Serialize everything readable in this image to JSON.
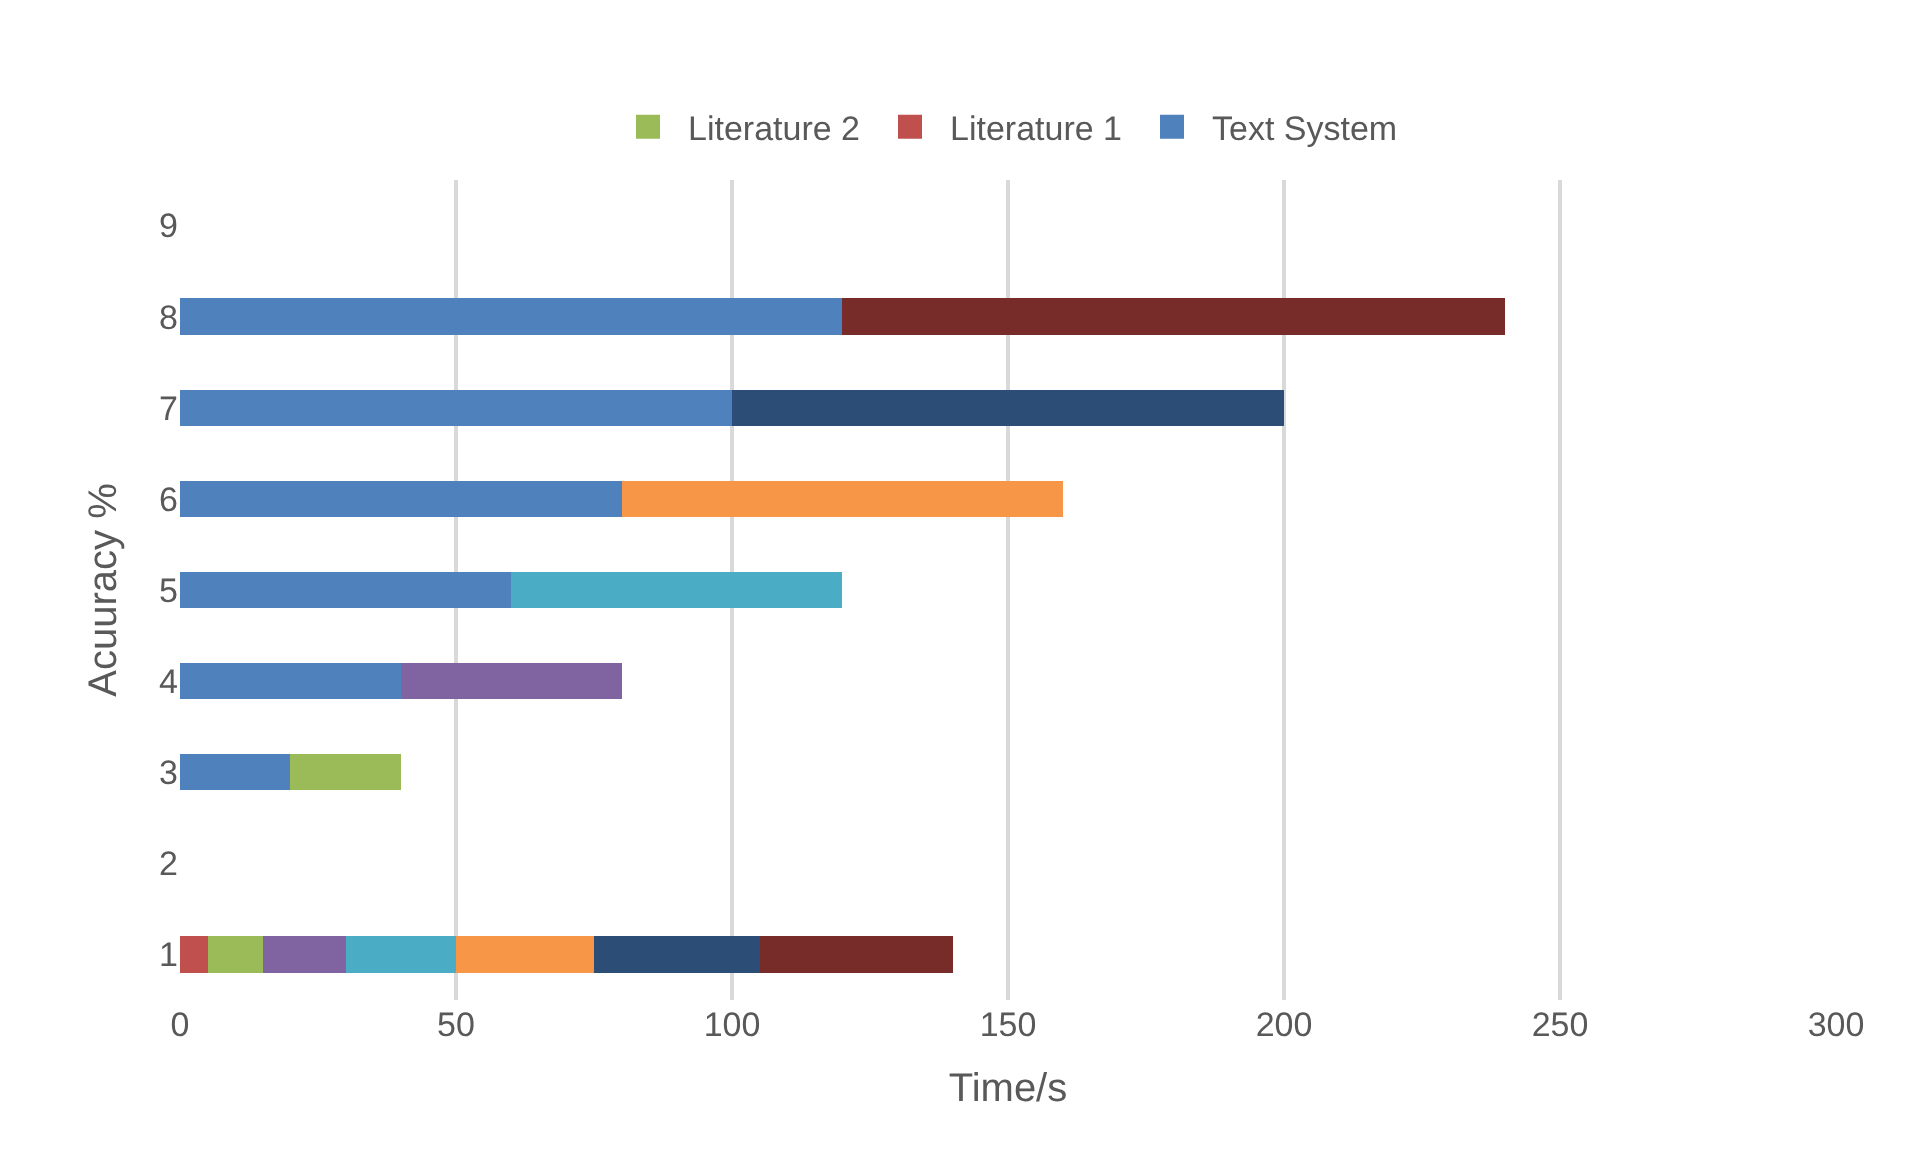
{
  "chart_data": {
    "type": "bar",
    "orientation": "horizontal",
    "stacked": true,
    "xlabel": "Time/s",
    "ylabel": "Acuuracy %",
    "categories": [
      "9",
      "8",
      "7",
      "6",
      "5",
      "4",
      "3",
      "2",
      "1"
    ],
    "series": [
      {
        "name": "Text System",
        "color": "#4f81bd",
        "values": [
          null,
          120,
          100,
          80,
          60,
          40,
          20,
          null,
          null
        ]
      },
      {
        "name": "Literature 1",
        "color": "#c0504d",
        "values": [
          null,
          null,
          null,
          null,
          null,
          null,
          null,
          null,
          5
        ]
      },
      {
        "name": "Literature 2",
        "color": "#9bbb59",
        "values": [
          null,
          null,
          null,
          null,
          null,
          null,
          20,
          null,
          10
        ]
      },
      {
        "color": "#8064a2",
        "values": [
          null,
          null,
          null,
          null,
          null,
          40,
          null,
          null,
          15
        ]
      },
      {
        "color": "#4bacc6",
        "values": [
          null,
          null,
          null,
          null,
          60,
          null,
          null,
          null,
          20
        ]
      },
      {
        "color": "#f79646",
        "values": [
          null,
          null,
          null,
          80,
          null,
          null,
          null,
          null,
          25
        ]
      },
      {
        "color": "#2c4d75",
        "values": [
          null,
          null,
          100,
          null,
          null,
          null,
          null,
          null,
          30
        ]
      },
      {
        "color": "#772c2a",
        "values": [
          null,
          120,
          null,
          null,
          null,
          null,
          null,
          null,
          35
        ]
      }
    ],
    "xlim": [
      0,
      300
    ],
    "xticks": [
      0,
      50,
      100,
      150,
      200,
      250,
      300
    ],
    "grid": "x",
    "legend": "top"
  }
}
